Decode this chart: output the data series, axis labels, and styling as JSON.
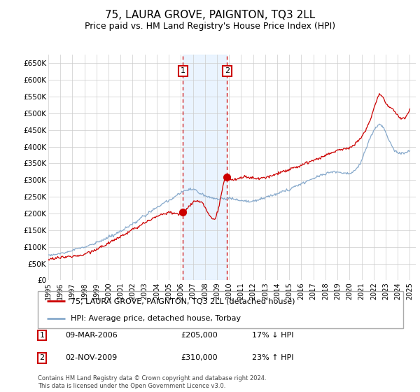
{
  "title": "75, LAURA GROVE, PAIGNTON, TQ3 2LL",
  "subtitle": "Price paid vs. HM Land Registry's House Price Index (HPI)",
  "title_fontsize": 11,
  "subtitle_fontsize": 9,
  "ylabel_ticks": [
    "£0",
    "£50K",
    "£100K",
    "£150K",
    "£200K",
    "£250K",
    "£300K",
    "£350K",
    "£400K",
    "£450K",
    "£500K",
    "£550K",
    "£600K",
    "£650K"
  ],
  "ytick_vals": [
    0,
    50000,
    100000,
    150000,
    200000,
    250000,
    300000,
    350000,
    400000,
    450000,
    500000,
    550000,
    600000,
    650000
  ],
  "ylim": [
    0,
    675000
  ],
  "xlim_start": 1995.0,
  "xlim_end": 2025.5,
  "transaction1_x": 2006.18,
  "transaction1_y": 205000,
  "transaction2_x": 2009.83,
  "transaction2_y": 310000,
  "legend_line1": "75, LAURA GROVE, PAIGNTON, TQ3 2LL (detached house)",
  "legend_line2": "HPI: Average price, detached house, Torbay",
  "table_row1_num": "1",
  "table_row1_date": "09-MAR-2006",
  "table_row1_price": "£205,000",
  "table_row1_hpi": "17% ↓ HPI",
  "table_row2_num": "2",
  "table_row2_date": "02-NOV-2009",
  "table_row2_price": "£310,000",
  "table_row2_hpi": "23% ↑ HPI",
  "footnote": "Contains HM Land Registry data © Crown copyright and database right 2024.\nThis data is licensed under the Open Government Licence v3.0.",
  "line_color_red": "#cc0000",
  "line_color_blue": "#88aacc",
  "grid_color": "#cccccc",
  "shade_color": "#ddeeff",
  "background_color": "#ffffff"
}
